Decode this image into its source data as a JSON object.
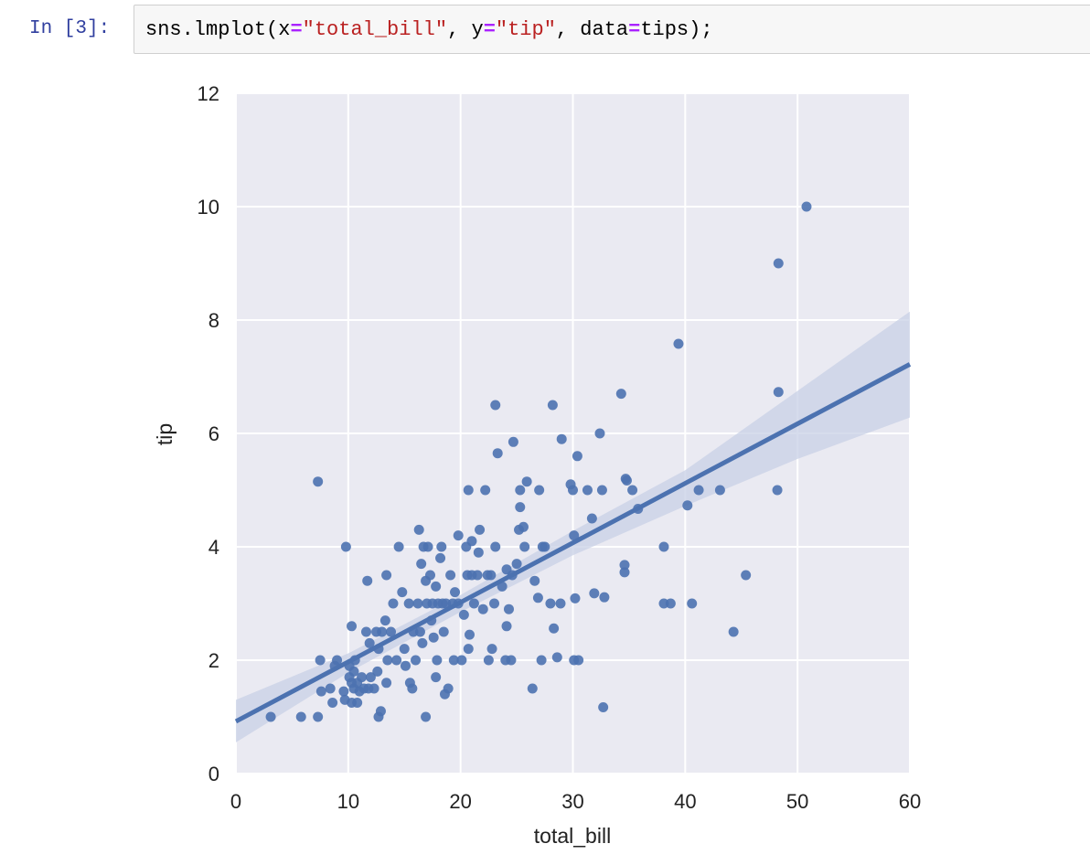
{
  "cell": {
    "prompt": "In [3]:",
    "code_tokens": [
      {
        "text": "sns.lmplot(x",
        "cls": ""
      },
      {
        "text": "=",
        "cls": "c-op"
      },
      {
        "text": "\"total_bill\"",
        "cls": "c-str"
      },
      {
        "text": ", y",
        "cls": ""
      },
      {
        "text": "=",
        "cls": "c-op"
      },
      {
        "text": "\"tip\"",
        "cls": "c-str"
      },
      {
        "text": ", data",
        "cls": ""
      },
      {
        "text": "=",
        "cls": "c-op"
      },
      {
        "text": "tips);",
        "cls": ""
      }
    ]
  },
  "colors": {
    "plot_background": "#eaeaf2",
    "grid": "#ffffff",
    "points": "#4c72b0",
    "regression_line": "#4c72b0",
    "confidence_band": "#c8d0e5"
  },
  "chart_data": {
    "type": "scatter",
    "title": "",
    "xlabel": "total_bill",
    "ylabel": "tip",
    "xlim": [
      0,
      60
    ],
    "ylim": [
      0,
      12
    ],
    "xticks": [
      0,
      10,
      20,
      30,
      40,
      50,
      60
    ],
    "yticks": [
      0,
      2,
      4,
      6,
      8,
      10,
      12
    ],
    "grid": true,
    "points": [
      [
        3.1,
        1.0
      ],
      [
        5.8,
        1.0
      ],
      [
        7.3,
        1.0
      ],
      [
        7.3,
        5.15
      ],
      [
        7.5,
        2.0
      ],
      [
        7.6,
        1.45
      ],
      [
        8.4,
        1.5
      ],
      [
        8.6,
        1.25
      ],
      [
        8.8,
        1.9
      ],
      [
        9.0,
        2.0
      ],
      [
        9.6,
        1.45
      ],
      [
        9.7,
        1.3
      ],
      [
        9.8,
        4.0
      ],
      [
        10.1,
        1.7
      ],
      [
        10.1,
        1.9
      ],
      [
        10.3,
        2.6
      ],
      [
        10.3,
        1.25
      ],
      [
        10.3,
        1.6
      ],
      [
        10.5,
        1.5
      ],
      [
        10.5,
        1.8
      ],
      [
        10.6,
        2.0
      ],
      [
        10.8,
        1.25
      ],
      [
        10.8,
        1.6
      ],
      [
        11.0,
        1.45
      ],
      [
        11.2,
        1.7
      ],
      [
        11.4,
        1.5
      ],
      [
        11.6,
        2.5
      ],
      [
        11.7,
        3.4
      ],
      [
        11.8,
        1.5
      ],
      [
        11.9,
        2.3
      ],
      [
        12.0,
        1.7
      ],
      [
        12.3,
        1.5
      ],
      [
        12.5,
        2.5
      ],
      [
        12.6,
        1.8
      ],
      [
        12.7,
        1.0
      ],
      [
        12.7,
        2.2
      ],
      [
        12.9,
        1.1
      ],
      [
        13.0,
        2.5
      ],
      [
        13.3,
        2.7
      ],
      [
        13.4,
        3.5
      ],
      [
        13.4,
        1.6
      ],
      [
        13.5,
        2.0
      ],
      [
        13.8,
        2.5
      ],
      [
        14.0,
        3.0
      ],
      [
        14.3,
        2.0
      ],
      [
        14.5,
        4.0
      ],
      [
        14.8,
        3.2
      ],
      [
        15.0,
        2.2
      ],
      [
        15.1,
        1.9
      ],
      [
        15.4,
        3.0
      ],
      [
        15.5,
        1.6
      ],
      [
        15.7,
        1.5
      ],
      [
        15.8,
        2.5
      ],
      [
        16.0,
        2.0
      ],
      [
        16.2,
        3.0
      ],
      [
        16.3,
        4.3
      ],
      [
        16.4,
        2.5
      ],
      [
        16.5,
        3.7
      ],
      [
        16.6,
        2.3
      ],
      [
        16.7,
        4.0
      ],
      [
        16.9,
        1.0
      ],
      [
        16.9,
        3.4
      ],
      [
        17.0,
        3.0
      ],
      [
        17.1,
        4.0
      ],
      [
        17.3,
        3.5
      ],
      [
        17.4,
        2.7
      ],
      [
        17.5,
        3.0
      ],
      [
        17.6,
        2.4
      ],
      [
        17.8,
        1.7
      ],
      [
        17.8,
        3.3
      ],
      [
        17.9,
        2.0
      ],
      [
        18.0,
        3.0
      ],
      [
        18.2,
        3.8
      ],
      [
        18.3,
        4.0
      ],
      [
        18.4,
        3.0
      ],
      [
        18.5,
        2.5
      ],
      [
        18.6,
        1.4
      ],
      [
        18.7,
        3.0
      ],
      [
        18.9,
        1.5
      ],
      [
        19.1,
        3.5
      ],
      [
        19.3,
        3.0
      ],
      [
        19.4,
        2.0
      ],
      [
        19.5,
        3.2
      ],
      [
        19.8,
        4.2
      ],
      [
        19.8,
        3.0
      ],
      [
        20.1,
        2.0
      ],
      [
        20.3,
        2.8
      ],
      [
        20.5,
        4.0
      ],
      [
        20.6,
        3.5
      ],
      [
        20.7,
        2.2
      ],
      [
        20.7,
        5.0
      ],
      [
        20.8,
        2.45
      ],
      [
        21.0,
        4.1
      ],
      [
        21.0,
        3.5
      ],
      [
        21.2,
        3.0
      ],
      [
        21.5,
        3.5
      ],
      [
        21.6,
        3.9
      ],
      [
        21.7,
        4.3
      ],
      [
        22.0,
        2.9
      ],
      [
        22.2,
        5.0
      ],
      [
        22.4,
        3.5
      ],
      [
        22.5,
        2.0
      ],
      [
        22.7,
        3.5
      ],
      [
        22.8,
        2.2
      ],
      [
        23.0,
        3.0
      ],
      [
        23.1,
        6.5
      ],
      [
        23.1,
        4.0
      ],
      [
        23.3,
        5.65
      ],
      [
        23.7,
        3.3
      ],
      [
        24.0,
        2.0
      ],
      [
        24.1,
        2.6
      ],
      [
        24.1,
        3.6
      ],
      [
        24.3,
        2.9
      ],
      [
        24.5,
        2.0
      ],
      [
        24.6,
        3.5
      ],
      [
        24.7,
        5.85
      ],
      [
        25.0,
        3.7
      ],
      [
        25.2,
        4.3
      ],
      [
        25.3,
        4.7
      ],
      [
        25.3,
        5.0
      ],
      [
        25.6,
        4.35
      ],
      [
        25.7,
        4.0
      ],
      [
        25.9,
        5.15
      ],
      [
        26.4,
        1.5
      ],
      [
        26.6,
        3.4
      ],
      [
        26.9,
        3.1
      ],
      [
        27.0,
        5.0
      ],
      [
        27.2,
        2.0
      ],
      [
        27.3,
        4.0
      ],
      [
        27.5,
        4.0
      ],
      [
        28.0,
        3.0
      ],
      [
        28.2,
        6.5
      ],
      [
        28.3,
        2.56
      ],
      [
        28.6,
        2.05
      ],
      [
        28.9,
        3.0
      ],
      [
        29.0,
        5.9
      ],
      [
        29.8,
        5.1
      ],
      [
        30.0,
        5.0
      ],
      [
        30.1,
        4.2
      ],
      [
        30.1,
        2.0
      ],
      [
        30.2,
        3.09
      ],
      [
        30.4,
        5.6
      ],
      [
        30.5,
        2.0
      ],
      [
        31.3,
        5.0
      ],
      [
        31.7,
        4.5
      ],
      [
        31.9,
        3.18
      ],
      [
        32.4,
        6.0
      ],
      [
        32.6,
        5.0
      ],
      [
        32.7,
        1.17
      ],
      [
        32.8,
        3.11
      ],
      [
        34.3,
        6.7
      ],
      [
        34.6,
        3.55
      ],
      [
        34.6,
        3.68
      ],
      [
        34.7,
        5.2
      ],
      [
        34.8,
        5.17
      ],
      [
        35.3,
        5.0
      ],
      [
        35.8,
        4.67
      ],
      [
        38.1,
        4.0
      ],
      [
        38.1,
        3.0
      ],
      [
        38.7,
        3.0
      ],
      [
        39.4,
        7.58
      ],
      [
        40.2,
        4.73
      ],
      [
        40.6,
        3.0
      ],
      [
        41.2,
        5.0
      ],
      [
        43.1,
        5.0
      ],
      [
        44.3,
        2.5
      ],
      [
        45.4,
        3.5
      ],
      [
        48.2,
        5.0
      ],
      [
        48.3,
        6.73
      ],
      [
        48.3,
        9.0
      ],
      [
        50.8,
        10.0
      ]
    ],
    "regression": {
      "intercept": 0.92,
      "slope": 0.105
    },
    "confidence_band": {
      "x": [
        0,
        10,
        20,
        30,
        40,
        50,
        60
      ],
      "lower": [
        0.55,
        1.78,
        2.85,
        3.85,
        4.72,
        5.55,
        6.28
      ],
      "upper": [
        1.3,
        2.12,
        3.15,
        4.28,
        5.35,
        6.75,
        8.15
      ]
    }
  }
}
